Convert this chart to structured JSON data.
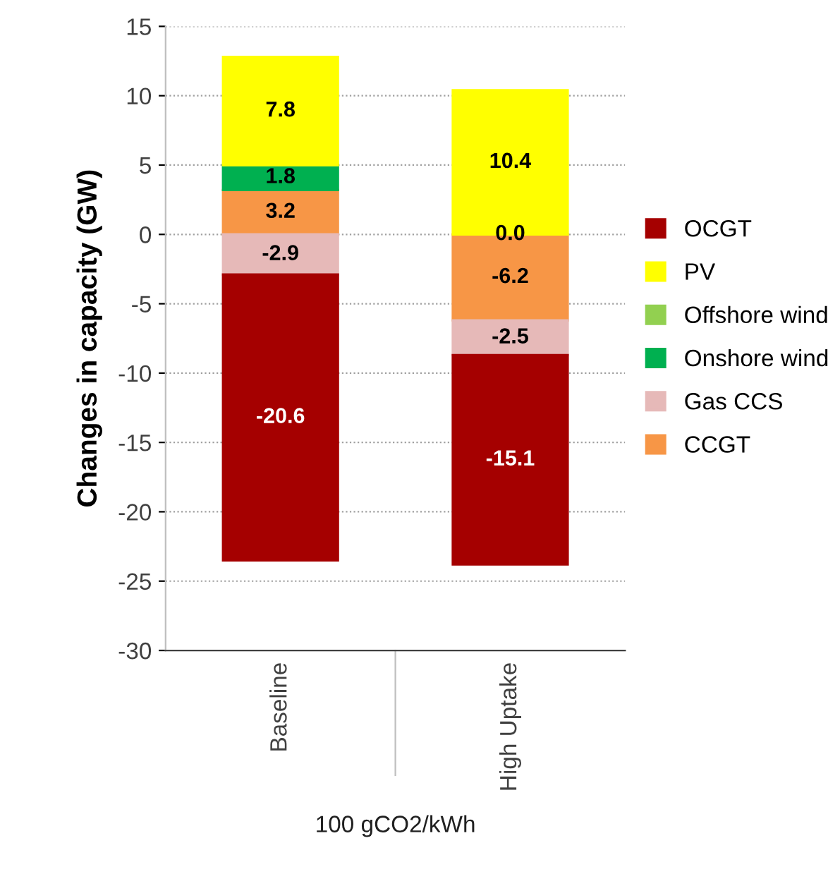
{
  "chart_data": {
    "type": "bar",
    "stacked": true,
    "ylabel": "Changes in capacity (GW)",
    "xlabel": "100 gCO2/kWh",
    "categories": [
      "Baseline",
      "High Uptake"
    ],
    "series": [
      {
        "name": "CCGT",
        "color": "#f79646",
        "values": [
          3.2,
          -6.2
        ],
        "value_labels": [
          "3.2",
          "-6.2"
        ]
      },
      {
        "name": "Gas CCS",
        "color": "#e6b9b8",
        "values": [
          -2.9,
          -2.5
        ],
        "value_labels": [
          "-2.9",
          "-2.5"
        ]
      },
      {
        "name": "Onshore wind",
        "color": "#00b050",
        "values": [
          1.8,
          0.0
        ],
        "value_labels": [
          "1.8",
          "0.0"
        ]
      },
      {
        "name": "Offshore wind",
        "color": "#92d050",
        "values": [
          0.0,
          0.0
        ],
        "value_labels": [
          null,
          null
        ]
      },
      {
        "name": "PV",
        "color": "#ffff00",
        "values": [
          7.8,
          10.4
        ],
        "value_labels": [
          "7.8",
          "10.4"
        ]
      },
      {
        "name": "OCGT",
        "color": "#a50000",
        "values": [
          -20.6,
          -15.1
        ],
        "value_labels": [
          "-20.6",
          "-15.1"
        ]
      }
    ],
    "ylim": [
      -30,
      15
    ],
    "yticks": [
      -30,
      -25,
      -20,
      -15,
      -10,
      -5,
      0,
      5,
      10,
      15
    ],
    "grid": "y",
    "legend": "right"
  }
}
